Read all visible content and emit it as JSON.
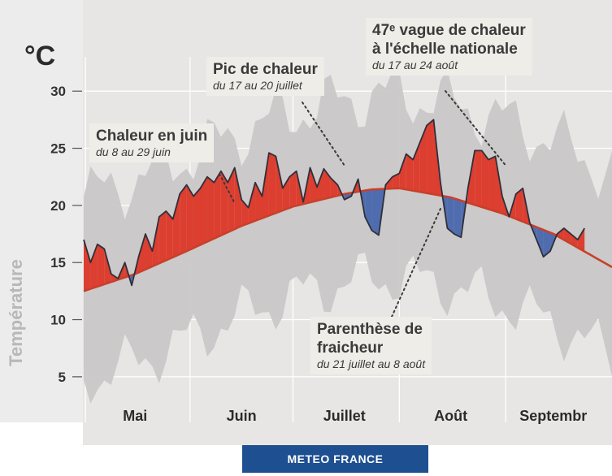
{
  "chart_data": {
    "type": "area",
    "ylabel": "Température",
    "unit": "°C",
    "y_ticks": [
      5,
      10,
      15,
      20,
      25,
      30
    ],
    "ylim": [
      3,
      33
    ],
    "xlim": [
      0,
      154
    ],
    "x_categories": [
      "Mai",
      "Juin",
      "Juillet",
      "Août",
      "Septembr"
    ],
    "x_category_centers": [
      15,
      46,
      76,
      107,
      137
    ],
    "x_separators": [
      0.5,
      31,
      61,
      92,
      123
    ],
    "grid": "horizontal",
    "series": [
      {
        "name": "normal",
        "x": [
          0,
          15,
          30,
          46,
          61,
          76,
          84,
          92,
          107,
          122,
          137,
          154
        ],
        "y": [
          12.5,
          14.0,
          16.0,
          18.2,
          19.9,
          21.0,
          21.4,
          21.5,
          20.7,
          19.3,
          17.5,
          14.6
        ]
      },
      {
        "name": "observed",
        "x": [
          0,
          2,
          4,
          6,
          8,
          10,
          12,
          14,
          16,
          18,
          20,
          22,
          24,
          26,
          28,
          30,
          32,
          34,
          36,
          38,
          40,
          42,
          44,
          46,
          48,
          50,
          52,
          54,
          56,
          58,
          60,
          62,
          64,
          66,
          68,
          70,
          72,
          74,
          76,
          78,
          80,
          82,
          84,
          86,
          88,
          90,
          92,
          94,
          96,
          98,
          100,
          102,
          104,
          106,
          108,
          110,
          112,
          114,
          116,
          118,
          120,
          122,
          124,
          126,
          128,
          130,
          132,
          134,
          136,
          138,
          140,
          142,
          144,
          146
        ],
        "y": [
          17.0,
          15.0,
          16.6,
          16.2,
          14.0,
          13.6,
          15.0,
          13.0,
          15.5,
          17.5,
          16.0,
          19.0,
          19.5,
          18.8,
          21.0,
          21.8,
          20.8,
          21.5,
          22.5,
          22.0,
          23.0,
          22.0,
          23.3,
          20.5,
          19.8,
          22.0,
          20.8,
          24.6,
          24.3,
          21.5,
          22.5,
          23.0,
          20.3,
          23.3,
          21.6,
          23.2,
          22.4,
          21.8,
          20.5,
          20.8,
          22.3,
          19.0,
          17.8,
          17.4,
          21.8,
          22.5,
          22.8,
          24.5,
          24.0,
          25.5,
          27.0,
          27.5,
          22.0,
          18.0,
          17.5,
          17.2,
          21.5,
          24.8,
          24.8,
          24.0,
          24.3,
          20.8,
          19.0,
          21.0,
          21.5,
          18.5,
          17.0,
          15.5,
          16.0,
          17.5,
          18.0,
          17.5,
          17.0,
          18.0
        ]
      }
    ],
    "annotations": [
      {
        "title": "Chaleur en juin",
        "subtitle": "du 8 au 29 juin",
        "target_x": 44,
        "target_y": 20.2
      },
      {
        "title": "Pic de chaleur",
        "subtitle": "du 17 au 20 juillet",
        "target_x": 76,
        "target_y": 23.5
      },
      {
        "title": "47ᵉ vague de chaleur",
        "title2": "à l'échelle nationale",
        "subtitle": "du 17 au 24 août",
        "target_x": 123,
        "target_y": 23.5
      },
      {
        "title": "Parenthèse de",
        "title2": "fraicheur",
        "subtitle": "du 21 juillet au 8 août",
        "target_x": 104,
        "target_y": 19.7
      }
    ],
    "colors": {
      "above_normal": "#dc3e30",
      "below_normal": "#4f6cae",
      "normal_line": "#c8402a",
      "range_band": "#c9c7c7",
      "observed_line": "#2f2f3a"
    }
  },
  "logo_text": "METEO FRANCE"
}
